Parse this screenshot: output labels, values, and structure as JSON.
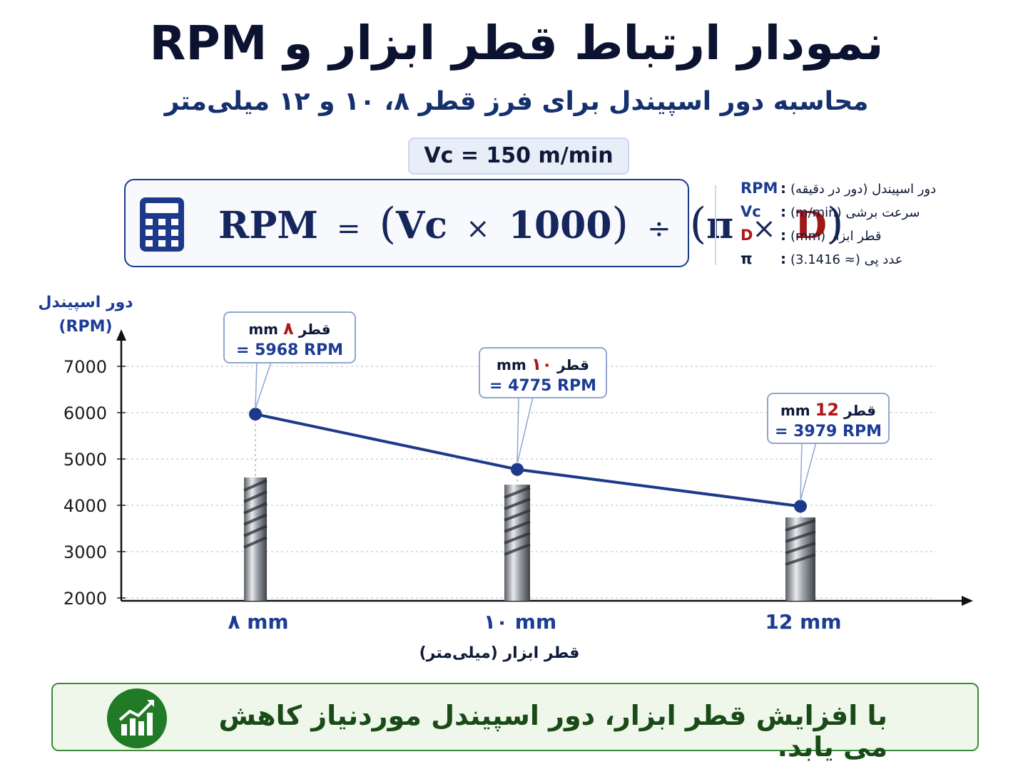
{
  "title": "نمودار ارتباط قطر ابزار و RPM",
  "subtitle": "محاسبه دور اسپیندل برای فرز قطر ۸، ۱۰ و ۱۲ میلی‌متر",
  "vc_badge": "Vc = 150 m/min",
  "formula": {
    "lhs": "RPM",
    "equals": "=",
    "open1": "(",
    "vc": "Vc",
    "times1": "×",
    "k": "1000",
    "close1": ")",
    "divide": "÷",
    "open2": "(",
    "pi": "π",
    "times2": "×",
    "d": "D",
    "close2": ")",
    "icon": "calculator-icon"
  },
  "legend": [
    {
      "key": "RPM",
      "colon": ":",
      "desc": "دور اسپیندل (دور در دقیقه)"
    },
    {
      "key": "Vc",
      "colon": ":",
      "desc": "سرعت برشی (m/min)"
    },
    {
      "key": "D",
      "colon": ":",
      "desc": "قطر ابزار (mm)"
    },
    {
      "key": "π",
      "colon": ":",
      "desc": "عدد پی (≈ 3.1416)"
    }
  ],
  "chart_data": {
    "type": "line",
    "title": "",
    "ylabel_line1": "دور اسپیندل",
    "ylabel_line2": "(RPM)",
    "xlabel": "قطر ابزار (میلی‌متر)",
    "categories": [
      "۸ mm",
      "۱۰ mm",
      "12 mm"
    ],
    "y_ticks": [
      7000,
      6000,
      5000,
      4000,
      3000,
      2000
    ],
    "ylim": [
      2000,
      7000
    ],
    "series": [
      {
        "values": [
          5968,
          4775,
          3979
        ],
        "color": "#1d3a8a"
      }
    ],
    "annotations": [
      {
        "label_prefix": "قطر",
        "label_num": "۸",
        "label_unit": "mm",
        "value_text": "= 5968 RPM"
      },
      {
        "label_prefix": "قطر",
        "label_num": "۱۰",
        "label_unit": "mm",
        "value_text": "= 4775 RPM"
      },
      {
        "label_prefix": "قطر",
        "label_num": "12",
        "label_unit": "mm",
        "value_text": "= 3979 RPM"
      }
    ],
    "grid": true,
    "decoration": "end-mill-tool-images"
  },
  "footer": {
    "text": "با افزایش قطر ابزار، دور اسپیندل موردنیاز کاهش می یابد.",
    "icon": "chart-trend-icon"
  },
  "colors": {
    "accent": "#1d3a8a",
    "highlight_red": "#b01717",
    "footer_bg": "#eef7e9",
    "footer_green": "#217a26"
  }
}
